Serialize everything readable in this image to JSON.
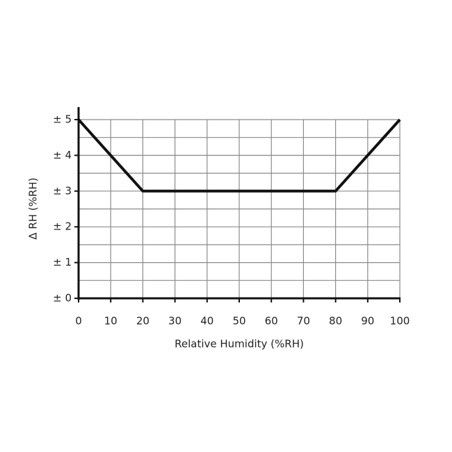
{
  "chart_data": {
    "type": "line",
    "x_label": "Relative Humidity (%RH)",
    "y_label": "Δ RH (%RH)",
    "x": [
      0,
      20,
      80,
      100
    ],
    "series": [
      {
        "color": "#111111",
        "values": [
          5,
          3,
          3,
          5
        ]
      }
    ],
    "xlim": [
      0,
      100
    ],
    "xticks": [
      0,
      10,
      20,
      30,
      40,
      50,
      60,
      70,
      80,
      90,
      100
    ],
    "ylim": [
      0,
      5
    ],
    "yticks": [
      {
        "value": 0,
        "label": "± 0"
      },
      {
        "value": 1,
        "label": "± 1"
      },
      {
        "value": 2,
        "label": "± 2"
      },
      {
        "value": 3,
        "label": "± 3"
      },
      {
        "value": 4,
        "label": "± 4"
      },
      {
        "value": 5,
        "label": "± 5"
      }
    ],
    "y_minor_ticks": [
      0.5,
      1.5,
      2.5,
      3.5,
      4.5
    ],
    "grid": true
  }
}
